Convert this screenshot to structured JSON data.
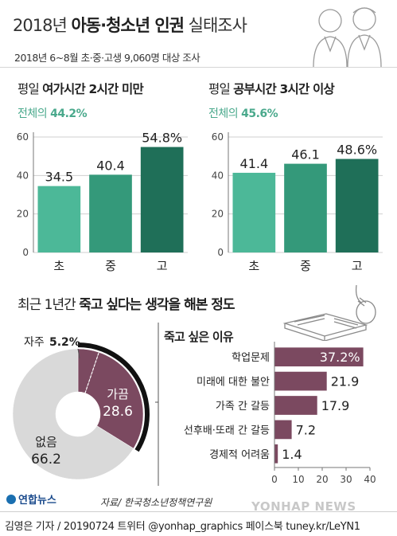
{
  "header": {
    "title_light_1": "2018년 ",
    "title_bold": "아동·청소년 인권",
    "title_light_2": " 실태조사",
    "subtitle": "2018년 6~8월 초·중·고생 9,060명 대상 조사"
  },
  "panel_left": {
    "title_light": "평일 ",
    "title_bold": "여가시간 2시간 미만",
    "sub_light": "전체의 ",
    "sub_pct": "44.2%"
  },
  "panel_right": {
    "title_light": "평일 ",
    "title_bold": "공부시간 3시간 이상",
    "sub_light": "전체의 ",
    "sub_pct": "45.6%"
  },
  "section": {
    "title_light": "최근 1년간 ",
    "title_bold": "죽고 싶다는 생각을 해본 정도"
  },
  "reasons_title": "죽고 싶은 이유",
  "pie_labels": {
    "often": "자주",
    "often_val": "5.2%",
    "sometimes": "가끔",
    "sometimes_val": "28.6",
    "never": "없음",
    "never_val": "66.2"
  },
  "footer": {
    "logo": "연합뉴스",
    "source": "자료/ 한국청소년정책연구원",
    "credit": "김영은 기자 / 20190724  트위터 @yonhap_graphics  페이스북 tuney.kr/LeYN1",
    "watermark": "YONHAP NEWS"
  },
  "colors": {
    "bar_light": "#4cb898",
    "bar_mid": "#34997a",
    "bar_dark": "#1f6f58",
    "accent_green": "#4aa98c",
    "purple": "#7b4960",
    "pie_gray": "#d9d9d9",
    "black": "#111111"
  },
  "chart_data": [
    {
      "type": "bar",
      "title": "평일 여가시간 2시간 미만",
      "categories": [
        "초",
        "중",
        "고"
      ],
      "values": [
        34.5,
        40.4,
        54.8
      ],
      "value_labels": [
        "34.5",
        "40.4",
        "54.8%"
      ],
      "ylim": [
        0,
        60
      ],
      "yticks": [
        0,
        20,
        40,
        60
      ],
      "grid": true
    },
    {
      "type": "bar",
      "title": "평일 공부시간 3시간 이상",
      "categories": [
        "초",
        "중",
        "고"
      ],
      "values": [
        41.4,
        46.1,
        48.6
      ],
      "value_labels": [
        "41.4",
        "46.1",
        "48.6%"
      ],
      "ylim": [
        0,
        60
      ],
      "yticks": [
        0,
        20,
        40,
        60
      ],
      "grid": true
    },
    {
      "type": "pie",
      "title": "최근 1년간 죽고 싶다는 생각을 해본 정도",
      "categories": [
        "자주",
        "가끔",
        "없음"
      ],
      "values": [
        5.2,
        28.6,
        66.2
      ]
    },
    {
      "type": "bar",
      "orientation": "horizontal",
      "title": "죽고 싶은 이유",
      "categories": [
        "학업문제",
        "미래에 대한 불안",
        "가족 간 갈등",
        "선후배·또래 간 갈등",
        "경제적 어려움"
      ],
      "values": [
        37.2,
        21.9,
        17.9,
        7.2,
        1.4
      ],
      "value_labels": [
        "37.2%",
        "21.9",
        "17.9",
        "7.2",
        "1.4"
      ],
      "xlim": [
        0,
        40
      ],
      "xticks": [
        0,
        10,
        20,
        30,
        40
      ]
    }
  ]
}
